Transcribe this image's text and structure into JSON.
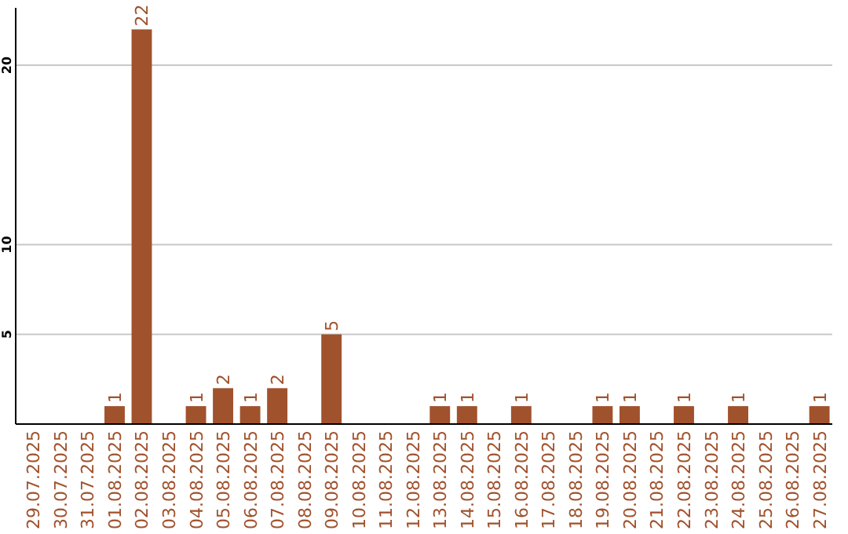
{
  "chart_data": {
    "type": "bar",
    "categories": [
      "29.07.2025",
      "30.07.2025",
      "31.07.2025",
      "01.08.2025",
      "02.08.2025",
      "03.08.2025",
      "04.08.2025",
      "05.08.2025",
      "06.08.2025",
      "07.08.2025",
      "08.08.2025",
      "09.08.2025",
      "10.08.2025",
      "11.08.2025",
      "12.08.2025",
      "13.08.2025",
      "14.08.2025",
      "15.08.2025",
      "16.08.2025",
      "17.08.2025",
      "18.08.2025",
      "19.08.2025",
      "20.08.2025",
      "21.08.2025",
      "22.08.2025",
      "23.08.2025",
      "24.08.2025",
      "25.08.2025",
      "26.08.2025",
      "27.08.2025"
    ],
    "values": [
      0,
      0,
      0,
      1,
      22,
      0,
      1,
      2,
      1,
      2,
      0,
      5,
      0,
      0,
      0,
      1,
      1,
      0,
      1,
      0,
      0,
      1,
      1,
      0,
      1,
      0,
      1,
      0,
      0,
      1
    ],
    "value_labels": [
      null,
      null,
      null,
      "1",
      "22",
      null,
      "1",
      "2",
      "1",
      "2",
      null,
      "5",
      null,
      null,
      null,
      "1",
      "1",
      null,
      "1",
      null,
      null,
      "1",
      "1",
      null,
      "1",
      null,
      "1",
      null,
      null,
      "1"
    ],
    "color": "#a0522d",
    "ylim": [
      0,
      23.2
    ],
    "yticks": [
      5,
      10,
      20
    ],
    "grid": "y"
  }
}
